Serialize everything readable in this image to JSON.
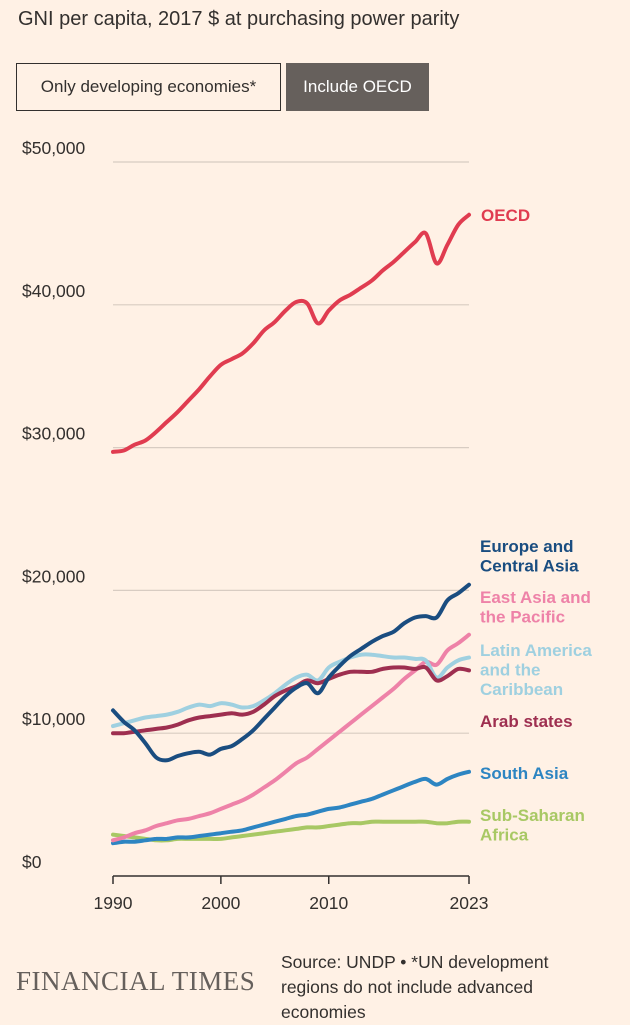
{
  "header": {
    "title": "GNI per capita, 2017 $ at purchasing power parity"
  },
  "toggles": {
    "developing_label": "Only developing economies*",
    "oecd_label": "Include OECD",
    "selected": "Include OECD"
  },
  "footer": {
    "logo": "FINANCIAL TIMES",
    "source": "Source: UNDP • *UN development regions do not include advanced economies"
  },
  "colors": {
    "background": "#fff1e5",
    "gridline": "#d8ccc2",
    "axis": "#33302e"
  },
  "chart_data": {
    "type": "line",
    "title": "GNI per capita, 2017 $ at purchasing power parity",
    "x_range": [
      1990,
      2023
    ],
    "ylim": [
      0,
      50000
    ],
    "x_ticks": [
      1990,
      2000,
      2010,
      2023
    ],
    "x_tick_labels": [
      "1990",
      "2000",
      "2010",
      "2023"
    ],
    "y_ticks": [
      0,
      10000,
      20000,
      30000,
      40000,
      50000
    ],
    "y_tick_labels": [
      "$0",
      "$10,000",
      "$20,000",
      "$30,000",
      "$40,000",
      "$50,000"
    ],
    "grid": true,
    "legend": "direct labels at line ends",
    "x": [
      1990,
      1991,
      1992,
      1993,
      1994,
      1995,
      1996,
      1997,
      1998,
      1999,
      2000,
      2001,
      2002,
      2003,
      2004,
      2005,
      2006,
      2007,
      2008,
      2009,
      2010,
      2011,
      2012,
      2013,
      2014,
      2015,
      2016,
      2017,
      2018,
      2019,
      2020,
      2021,
      2022,
      2023
    ],
    "series": [
      {
        "name": "OECD",
        "color": "#e03c50",
        "label_lines": [
          "OECD"
        ],
        "values": [
          29700,
          29800,
          30200,
          30500,
          31100,
          31800,
          32500,
          33300,
          34100,
          35000,
          35800,
          36200,
          36600,
          37300,
          38200,
          38800,
          39600,
          40200,
          40100,
          38700,
          39600,
          40300,
          40700,
          41200,
          41700,
          42400,
          43000,
          43700,
          44400,
          45000,
          42900,
          44200,
          45600,
          46300
        ]
      },
      {
        "name": "Europe and Central Asia",
        "color": "#1a4d80",
        "label_lines": [
          "Europe and",
          "Central Asia"
        ],
        "values": [
          11600,
          10800,
          10200,
          9300,
          8300,
          8100,
          8400,
          8600,
          8700,
          8500,
          8900,
          9100,
          9600,
          10200,
          11000,
          11800,
          12600,
          13200,
          13500,
          12800,
          13900,
          14700,
          15400,
          15900,
          16400,
          16800,
          17100,
          17700,
          18100,
          18200,
          18100,
          19300,
          19800,
          20400
        ]
      },
      {
        "name": "East Asia and the Pacific",
        "color": "#ee82a8",
        "label_lines": [
          "East Asia and",
          "the Pacific"
        ],
        "values": [
          2500,
          2700,
          3000,
          3200,
          3500,
          3700,
          3900,
          4000,
          4200,
          4400,
          4700,
          5000,
          5300,
          5700,
          6200,
          6700,
          7300,
          7900,
          8300,
          8900,
          9500,
          10100,
          10700,
          11300,
          11900,
          12500,
          13100,
          13800,
          14400,
          15000,
          14800,
          15800,
          16300,
          16900
        ]
      },
      {
        "name": "Latin America and the Caribbean",
        "color": "#9fd0e0",
        "label_lines": [
          "Latin America",
          "and the",
          "Caribbean"
        ],
        "values": [
          10500,
          10700,
          10900,
          11100,
          11200,
          11300,
          11500,
          11800,
          12000,
          11900,
          12100,
          12000,
          11800,
          11900,
          12300,
          12800,
          13400,
          13900,
          14100,
          13700,
          14600,
          15000,
          15300,
          15500,
          15500,
          15400,
          15300,
          15300,
          15200,
          15100,
          13900,
          14600,
          15100,
          15300
        ]
      },
      {
        "name": "Arab states",
        "color": "#9e2f50",
        "label_lines": [
          "Arab states"
        ],
        "values": [
          10000,
          10000,
          10100,
          10200,
          10300,
          10400,
          10600,
          10900,
          11100,
          11200,
          11300,
          11400,
          11300,
          11500,
          12000,
          12600,
          13000,
          13300,
          13700,
          13500,
          13800,
          14100,
          14300,
          14300,
          14300,
          14500,
          14600,
          14600,
          14500,
          14600,
          13700,
          14000,
          14500,
          14400
        ]
      },
      {
        "name": "South Asia",
        "color": "#2d85c2",
        "label_lines": [
          "South Asia"
        ],
        "values": [
          2300,
          2400,
          2400,
          2500,
          2600,
          2600,
          2700,
          2700,
          2800,
          2900,
          3000,
          3100,
          3200,
          3400,
          3600,
          3800,
          4000,
          4200,
          4300,
          4500,
          4700,
          4800,
          5000,
          5200,
          5400,
          5700,
          6000,
          6300,
          6600,
          6800,
          6400,
          6800,
          7100,
          7300
        ]
      },
      {
        "name": "Sub-Saharan Africa",
        "color": "#a8c864",
        "label_lines": [
          "Sub-Saharan",
          "Africa"
        ],
        "values": [
          2900,
          2800,
          2700,
          2600,
          2500,
          2500,
          2600,
          2600,
          2600,
          2600,
          2600,
          2700,
          2800,
          2900,
          3000,
          3100,
          3200,
          3300,
          3400,
          3400,
          3500,
          3600,
          3700,
          3700,
          3800,
          3800,
          3800,
          3800,
          3800,
          3800,
          3700,
          3700,
          3800,
          3800
        ]
      }
    ]
  }
}
